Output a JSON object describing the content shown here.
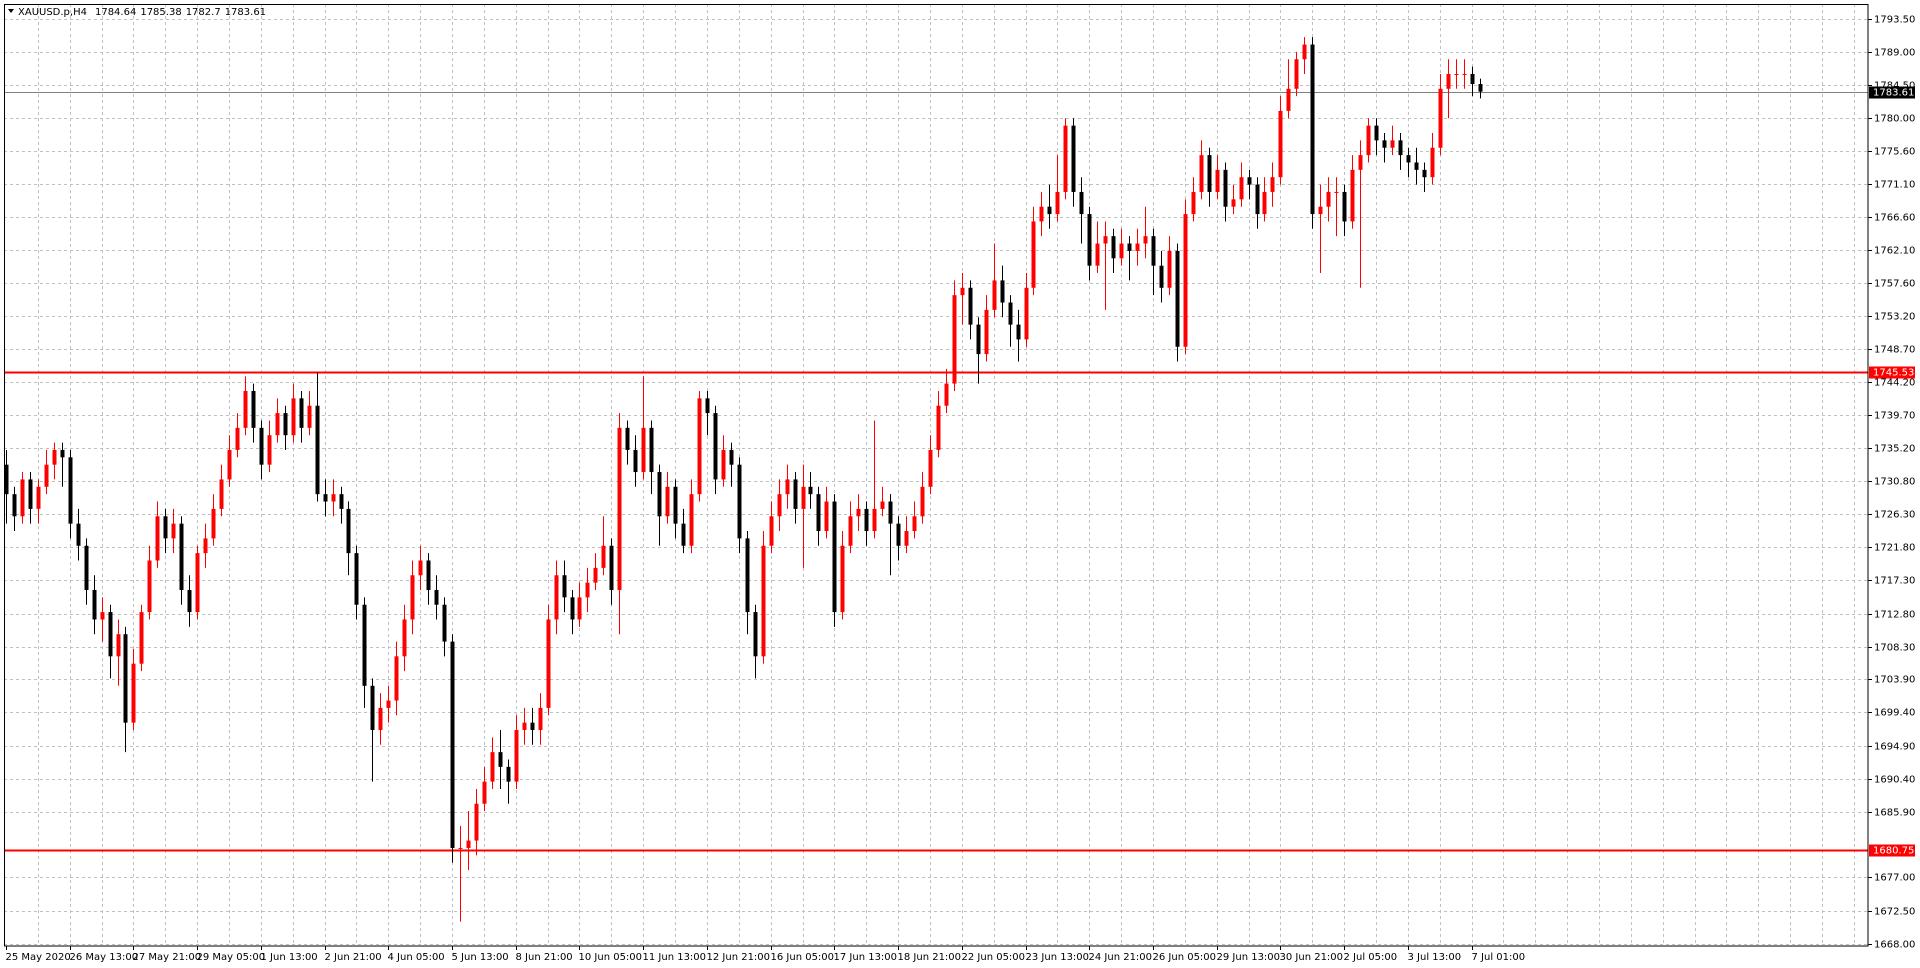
{
  "chart_data": {
    "type": "candlestick",
    "title": "XAUUSD.p,H4",
    "up_color": "#ff0000",
    "down_color": "#000000",
    "price_line_color": "#808080",
    "grid": true,
    "ylim": [
      1667.7,
      1795.5
    ],
    "yticks": [
      {
        "value": 1793.5,
        "label": "1793.50"
      },
      {
        "value": 1789,
        "label": "1789.00"
      },
      {
        "value": 1784.5,
        "label": "1784.50"
      },
      {
        "value": 1780,
        "label": "1780.00"
      },
      {
        "value": 1775.6,
        "label": "1775.60"
      },
      {
        "value": 1771.1,
        "label": "1771.10"
      },
      {
        "value": 1766.6,
        "label": "1766.60"
      },
      {
        "value": 1762.1,
        "label": "1762.10"
      },
      {
        "value": 1757.6,
        "label": "1757.60"
      },
      {
        "value": 1753.2,
        "label": "1753.20"
      },
      {
        "value": 1748.7,
        "label": "1748.70"
      },
      {
        "value": 1744.2,
        "label": "1744.20"
      },
      {
        "value": 1739.7,
        "label": "1739.70"
      },
      {
        "value": 1735.2,
        "label": "1735.20"
      },
      {
        "value": 1730.8,
        "label": "1730.80"
      },
      {
        "value": 1726.3,
        "label": "1726.30"
      },
      {
        "value": 1721.8,
        "label": "1721.80"
      },
      {
        "value": 1717.3,
        "label": "1717.30"
      },
      {
        "value": 1712.8,
        "label": "1712.80"
      },
      {
        "value": 1708.3,
        "label": "1708.30"
      },
      {
        "value": 1703.9,
        "label": "1703.90"
      },
      {
        "value": 1699.4,
        "label": "1699.40"
      },
      {
        "value": 1694.9,
        "label": "1694.90"
      },
      {
        "value": 1690.4,
        "label": "1690.40"
      },
      {
        "value": 1685.9,
        "label": "1685.90"
      },
      {
        "value": 1677,
        "label": "1677.00"
      },
      {
        "value": 1672.5,
        "label": "1672.50"
      },
      {
        "value": 1668,
        "label": "1668.00"
      }
    ],
    "hlines": [
      {
        "value": 1745.53,
        "color": "#ff0000"
      },
      {
        "value": 1680.75,
        "color": "#ff0000"
      }
    ],
    "categories": [
      "25 May 2020",
      null,
      null,
      null,
      null,
      null,
      null,
      null,
      "26 May 13:00",
      null,
      null,
      null,
      null,
      null,
      null,
      null,
      "27 May 21:00",
      null,
      null,
      null,
      null,
      null,
      null,
      null,
      "29 May 05:00",
      null,
      null,
      null,
      null,
      null,
      null,
      null,
      "1 Jun 13:00",
      null,
      null,
      null,
      null,
      null,
      null,
      null,
      "2 Jun 21:00",
      null,
      null,
      null,
      null,
      null,
      null,
      null,
      "4 Jun 05:00",
      null,
      null,
      null,
      null,
      null,
      null,
      null,
      "5 Jun 13:00",
      null,
      null,
      null,
      null,
      null,
      null,
      null,
      "8 Jun 21:00",
      null,
      null,
      null,
      null,
      null,
      null,
      null,
      "10 Jun 05:00",
      null,
      null,
      null,
      null,
      null,
      null,
      null,
      "11 Jun 13:00",
      null,
      null,
      null,
      null,
      null,
      null,
      null,
      "12 Jun 21:00",
      null,
      null,
      null,
      null,
      null,
      null,
      null,
      "16 Jun 05:00",
      null,
      null,
      null,
      null,
      null,
      null,
      null,
      "17 Jun 13:00",
      null,
      null,
      null,
      null,
      null,
      null,
      null,
      "18 Jun 21:00",
      null,
      null,
      null,
      null,
      null,
      null,
      null,
      "22 Jun 05:00",
      null,
      null,
      null,
      null,
      null,
      null,
      null,
      "23 Jun 13:00",
      null,
      null,
      null,
      null,
      null,
      null,
      null,
      "24 Jun 21:00",
      null,
      null,
      null,
      null,
      null,
      null,
      null,
      "26 Jun 05:00",
      null,
      null,
      null,
      null,
      null,
      null,
      null,
      "29 Jun 13:00",
      null,
      null,
      null,
      null,
      null,
      null,
      null,
      "30 Jun 21:00",
      null,
      null,
      null,
      null,
      null,
      null,
      null,
      "2 Jul 05:00",
      null,
      null,
      null,
      null,
      null,
      null,
      null,
      "3 Jul 13:00",
      null,
      null,
      null,
      null,
      null,
      null,
      null,
      "7 Jul 01:00",
      null
    ],
    "open": [
      1733,
      1729,
      1726,
      1731,
      1727,
      1730,
      1733,
      1735,
      1734,
      1725,
      1722,
      1716,
      1712,
      1713,
      1707,
      1710,
      1698,
      1706,
      1713,
      1720,
      1726,
      1723,
      1725,
      1716,
      1713,
      1721,
      1723,
      1727,
      1731,
      1735,
      1738,
      1743,
      1738,
      1733,
      1737,
      1740,
      1737,
      1742,
      1738,
      1741,
      1729,
      1728,
      1729,
      1727,
      1721,
      1714,
      1703,
      1697,
      1700,
      1701,
      1707,
      1712,
      1718,
      1720,
      1716,
      1714,
      1709,
      1681,
      1681,
      1682,
      1687,
      1690,
      1694,
      1692,
      1690,
      1697,
      1698,
      1697,
      1700,
      1712,
      1718,
      1715,
      1712,
      1715,
      1717,
      1719,
      1722,
      1716,
      1738,
      1735,
      1732,
      1738,
      1732,
      1726,
      1730,
      1725,
      1722,
      1729,
      1742,
      1740,
      1731,
      1735,
      1733,
      1723,
      1713,
      1707,
      1722,
      1726,
      1729,
      1731,
      1727,
      1730,
      1729,
      1724,
      1728,
      1713,
      1722,
      1726,
      1727,
      1724,
      1727,
      1728,
      1725,
      1722,
      1724,
      1726,
      1730,
      1735,
      1741,
      1744,
      1756,
      1757,
      1752,
      1748,
      1754,
      1758,
      1755,
      1752,
      1750,
      1757,
      1766,
      1768,
      1767,
      1770,
      1779,
      1770,
      1767,
      1760,
      1763,
      1764,
      1761,
      1763,
      1762,
      1763,
      1764,
      1760,
      1757,
      1762,
      1749,
      1767,
      1770,
      1775,
      1770,
      1773,
      1768,
      1769,
      1772,
      1771,
      1767,
      1770,
      1772,
      1781,
      1784,
      1788,
      1790,
      1767,
      1768,
      1770,
      1770,
      1766,
      1773,
      1775,
      1779,
      1777,
      1776,
      1777,
      1775,
      1774,
      1773,
      1772,
      1776,
      1784,
      1786,
      1786,
      1786,
      1784.64
    ],
    "high": [
      1735,
      1730,
      1732,
      1732,
      1731,
      1735,
      1736,
      1736,
      1735,
      1727,
      1723,
      1718,
      1715,
      1714,
      1712,
      1711,
      1708,
      1714,
      1722,
      1728,
      1727,
      1727,
      1726,
      1718,
      1722,
      1725,
      1729,
      1733,
      1737,
      1740,
      1745,
      1744,
      1739,
      1739,
      1742,
      1741,
      1744,
      1743,
      1743,
      1745.5,
      1731,
      1731,
      1730,
      1728,
      1722,
      1715,
      1704,
      1702,
      1703,
      1709,
      1714,
      1720,
      1722,
      1721,
      1718,
      1715,
      1710,
      1684,
      1686,
      1689,
      1692,
      1696,
      1697,
      1693,
      1699,
      1700,
      1700,
      1702,
      1714,
      1720,
      1720,
      1716,
      1717,
      1719,
      1721,
      1726,
      1723,
      1740,
      1739,
      1737,
      1745,
      1739,
      1733,
      1732,
      1731,
      1727,
      1731,
      1743,
      1743,
      1741,
      1737,
      1736,
      1734,
      1724,
      1714,
      1724,
      1728,
      1731,
      1733,
      1732,
      1733,
      1732,
      1730,
      1730,
      1729,
      1724,
      1728,
      1729,
      1728,
      1739,
      1730,
      1729,
      1726,
      1726,
      1728,
      1732,
      1737,
      1743,
      1746,
      1758,
      1759,
      1758,
      1753,
      1756,
      1763,
      1760,
      1756,
      1754,
      1759,
      1768,
      1770,
      1771,
      1775,
      1780,
      1780,
      1772,
      1768,
      1766,
      1766,
      1765,
      1765,
      1764,
      1765,
      1768,
      1765,
      1762,
      1764,
      1763,
      1769,
      1772,
      1777,
      1776,
      1775,
      1774,
      1771,
      1774,
      1773,
      1772,
      1772,
      1774,
      1783,
      1788,
      1789,
      1791,
      1791,
      1771,
      1772,
      1772,
      1771,
      1775,
      1777,
      1780,
      1780,
      1778,
      1779,
      1778,
      1776,
      1776,
      1774,
      1778,
      1786,
      1788,
      1788,
      1788,
      1787,
      1785.38
    ],
    "low": [
      1725,
      1724,
      1725,
      1725,
      1725,
      1729,
      1731,
      1730,
      1723,
      1720,
      1714,
      1710,
      1709,
      1704,
      1703,
      1694,
      1697,
      1705,
      1712,
      1719,
      1721,
      1721,
      1714,
      1711,
      1712,
      1719,
      1722,
      1726,
      1730,
      1734,
      1737,
      1736,
      1731,
      1732,
      1736,
      1735,
      1736,
      1736,
      1737,
      1728,
      1726,
      1726,
      1725,
      1718,
      1712,
      1700,
      1690,
      1695,
      1698,
      1699,
      1705,
      1710,
      1716,
      1714,
      1712,
      1707,
      1679,
      1671,
      1678,
      1680,
      1686,
      1689,
      1689,
      1687,
      1689,
      1695,
      1695,
      1695,
      1699,
      1710,
      1713,
      1710,
      1711,
      1713,
      1716,
      1718,
      1714,
      1710,
      1733,
      1730,
      1731,
      1729,
      1722,
      1725,
      1723,
      1721,
      1721,
      1728,
      1737,
      1729,
      1730,
      1730,
      1721,
      1710,
      1704,
      1706,
      1721,
      1724,
      1727,
      1725,
      1719,
      1727,
      1722,
      1723,
      1711,
      1712,
      1721,
      1724,
      1722,
      1723,
      1726,
      1718,
      1720,
      1721,
      1723,
      1725,
      1729,
      1734,
      1740,
      1743,
      1752,
      1750,
      1744,
      1747,
      1753,
      1753,
      1749,
      1747,
      1749,
      1756,
      1764,
      1765,
      1766,
      1769,
      1768,
      1763,
      1758,
      1759,
      1754,
      1759,
      1760,
      1758,
      1760,
      1761,
      1756,
      1755,
      1756,
      1747,
      1748,
      1766,
      1769,
      1768,
      1769,
      1766,
      1767,
      1768,
      1769,
      1765,
      1766,
      1768,
      1771,
      1780,
      1783,
      1786,
      1765,
      1759,
      1766,
      1764,
      1764,
      1765,
      1757,
      1774,
      1775,
      1774,
      1775,
      1773,
      1772,
      1771,
      1770,
      1771,
      1775,
      1780,
      1784,
      1784,
      1783,
      1782.7
    ],
    "close": [
      1729,
      1726,
      1731,
      1727,
      1730,
      1733,
      1735,
      1734,
      1725,
      1722,
      1716,
      1712,
      1713,
      1707,
      1710,
      1698,
      1706,
      1713,
      1720,
      1726,
      1723,
      1725,
      1716,
      1713,
      1721,
      1723,
      1727,
      1731,
      1735,
      1738,
      1743,
      1738,
      1733,
      1737,
      1740,
      1737,
      1742,
      1738,
      1741,
      1729,
      1728,
      1729,
      1727,
      1721,
      1714,
      1703,
      1697,
      1700,
      1701,
      1707,
      1712,
      1718,
      1720,
      1716,
      1714,
      1709,
      1681,
      1681,
      1682,
      1687,
      1690,
      1694,
      1692,
      1690,
      1697,
      1698,
      1697,
      1700,
      1712,
      1718,
      1715,
      1712,
      1715,
      1717,
      1719,
      1722,
      1716,
      1738,
      1735,
      1732,
      1738,
      1732,
      1726,
      1730,
      1725,
      1722,
      1729,
      1742,
      1740,
      1731,
      1735,
      1733,
      1723,
      1713,
      1707,
      1722,
      1726,
      1729,
      1731,
      1727,
      1730,
      1729,
      1724,
      1728,
      1713,
      1722,
      1726,
      1727,
      1724,
      1727,
      1728,
      1725,
      1722,
      1724,
      1726,
      1730,
      1735,
      1741,
      1744,
      1756,
      1757,
      1752,
      1748,
      1754,
      1758,
      1755,
      1752,
      1750,
      1757,
      1766,
      1768,
      1767,
      1770,
      1779,
      1770,
      1767,
      1760,
      1763,
      1764,
      1761,
      1763,
      1762,
      1763,
      1764,
      1760,
      1757,
      1762,
      1749,
      1767,
      1770,
      1775,
      1770,
      1773,
      1768,
      1769,
      1772,
      1771,
      1767,
      1770,
      1772,
      1781,
      1784,
      1788,
      1790,
      1767,
      1768,
      1770,
      1770,
      1766,
      1773,
      1775,
      1779,
      1777,
      1776,
      1777,
      1775,
      1774,
      1773,
      1772,
      1776,
      1784,
      1786,
      1786,
      1786,
      1784.64,
      1783.61
    ]
  }
}
